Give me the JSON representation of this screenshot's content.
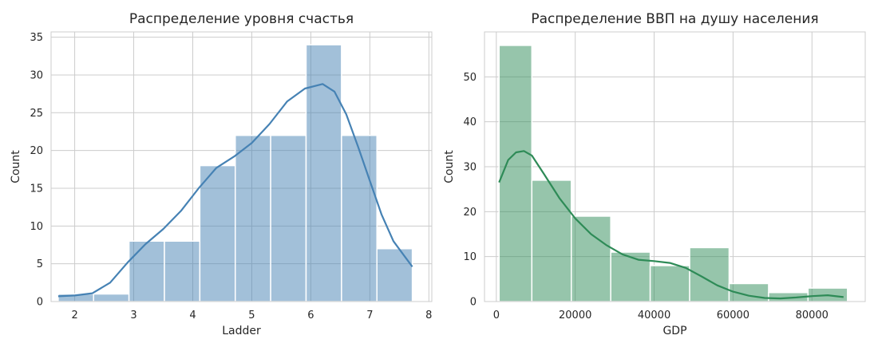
{
  "chart_data": [
    {
      "type": "histogram",
      "title": "Распределение уровня счастья",
      "xlabel": "Ladder",
      "ylabel": "Count",
      "xlim": [
        1.6,
        8.05
      ],
      "ylim": [
        0,
        35.7
      ],
      "xticks": [
        2,
        3,
        4,
        5,
        6,
        7,
        8
      ],
      "yticks": [
        0,
        5,
        10,
        15,
        20,
        25,
        30,
        35
      ],
      "grid": true,
      "color": "#4682b4",
      "bar_alpha": 0.5,
      "bins": [
        {
          "x0": 1.72,
          "x1": 2.32,
          "count": 1
        },
        {
          "x0": 2.32,
          "x1": 2.92,
          "count": 1
        },
        {
          "x0": 2.92,
          "x1": 3.52,
          "count": 8
        },
        {
          "x0": 3.52,
          "x1": 4.12,
          "count": 8
        },
        {
          "x0": 4.12,
          "x1": 4.72,
          "count": 18
        },
        {
          "x0": 4.72,
          "x1": 5.32,
          "count": 22
        },
        {
          "x0": 5.32,
          "x1": 5.92,
          "count": 22
        },
        {
          "x0": 5.92,
          "x1": 6.52,
          "count": 34
        },
        {
          "x0": 6.52,
          "x1": 7.12,
          "count": 22
        },
        {
          "x0": 7.12,
          "x1": 7.72,
          "count": 7
        }
      ],
      "kde": {
        "x": [
          1.72,
          2.0,
          2.3,
          2.6,
          2.9,
          3.2,
          3.5,
          3.8,
          4.1,
          4.4,
          4.7,
          5.0,
          5.3,
          5.6,
          5.9,
          6.2,
          6.4,
          6.6,
          6.8,
          7.0,
          7.2,
          7.4,
          7.72
        ],
        "y": [
          0.7,
          0.8,
          1.1,
          2.5,
          5.2,
          7.6,
          9.6,
          12.0,
          15.0,
          17.7,
          19.2,
          21.0,
          23.5,
          26.5,
          28.2,
          28.8,
          27.8,
          24.8,
          20.5,
          16.0,
          11.5,
          8.0,
          4.6
        ]
      }
    },
    {
      "type": "histogram",
      "title": "Распределение ВВП на душу населения",
      "xlabel": "GDP",
      "ylabel": "Count",
      "xlim": [
        -3000,
        93500
      ],
      "ylim": [
        0,
        60
      ],
      "xticks": [
        0,
        20000,
        40000,
        60000,
        80000
      ],
      "yticks": [
        0,
        10,
        20,
        30,
        40,
        50
      ],
      "grid": true,
      "color": "#2e8b57",
      "bar_alpha": 0.5,
      "bins": [
        {
          "x0": 700,
          "x1": 9000,
          "count": 57
        },
        {
          "x0": 9000,
          "x1": 19000,
          "count": 27
        },
        {
          "x0": 19000,
          "x1": 29000,
          "count": 19
        },
        {
          "x0": 29000,
          "x1": 39000,
          "count": 11
        },
        {
          "x0": 39000,
          "x1": 49000,
          "count": 8
        },
        {
          "x0": 49000,
          "x1": 59000,
          "count": 12
        },
        {
          "x0": 59000,
          "x1": 69000,
          "count": 4
        },
        {
          "x0": 69000,
          "x1": 79000,
          "count": 2
        },
        {
          "x0": 79000,
          "x1": 89000,
          "count": 3
        }
      ],
      "kde": {
        "x": [
          700,
          3000,
          5000,
          7000,
          9000,
          12000,
          16000,
          20000,
          24000,
          28000,
          32000,
          36000,
          40000,
          44000,
          48000,
          52000,
          56000,
          60000,
          64000,
          68000,
          72000,
          76000,
          80000,
          84000,
          88000
        ],
        "y": [
          26.5,
          31.5,
          33.2,
          33.5,
          32.5,
          28.5,
          23.0,
          18.5,
          15.0,
          12.5,
          10.5,
          9.3,
          9.0,
          8.6,
          7.5,
          5.6,
          3.6,
          2.2,
          1.3,
          0.8,
          0.7,
          0.9,
          1.2,
          1.4,
          1.0
        ]
      }
    }
  ]
}
